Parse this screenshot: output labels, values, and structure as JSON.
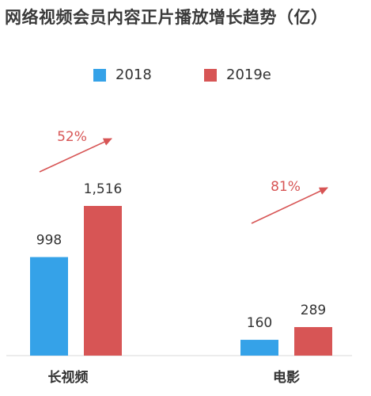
{
  "title": "网络视频会员内容正片播放增长趋势（亿）",
  "chart_data": {
    "type": "bar",
    "categories": [
      "长视频",
      "电影"
    ],
    "series": [
      {
        "name": "2018",
        "values": [
          998,
          160
        ],
        "color": "#35a2e8"
      },
      {
        "name": "2019e",
        "values": [
          1516,
          289
        ],
        "color": "#d75555"
      }
    ],
    "data_labels": [
      [
        "998",
        "1,516"
      ],
      [
        "160",
        "289"
      ]
    ],
    "growth_annotations": [
      "52%",
      "81%"
    ],
    "annotation_color": "#d75555",
    "legend_position": "top-center",
    "grid": false
  }
}
